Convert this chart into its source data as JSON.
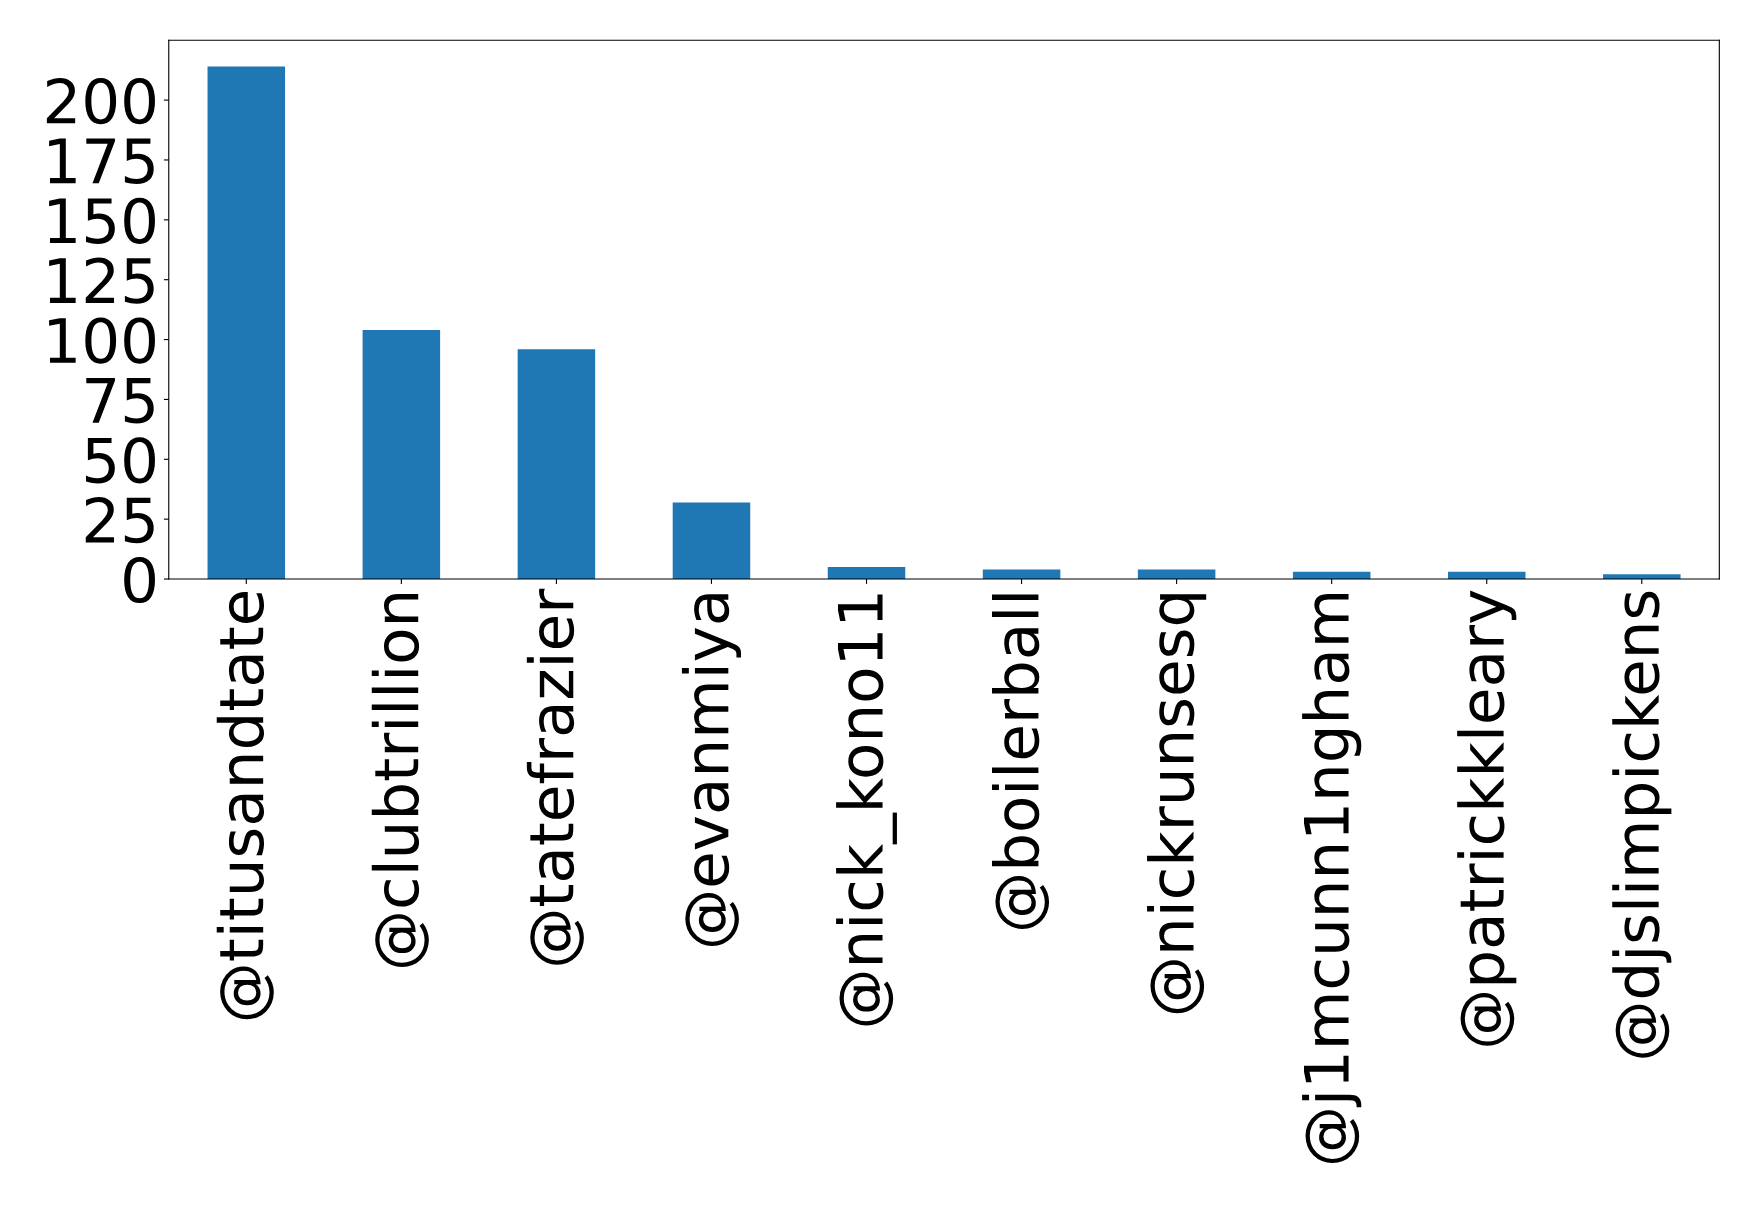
{
  "chart_data": {
    "type": "bar",
    "categories": [
      "@titusandtate",
      "@clubtrillion",
      "@tatefrazier",
      "@evanmiya",
      "@nick_kono11",
      "@boilerball",
      "@nickrunsesq",
      "@j1mcunn1ngham",
      "@patrickkleary",
      "@djslimpickens"
    ],
    "values": [
      214,
      104,
      96,
      32,
      5,
      4,
      4,
      3,
      3,
      2
    ],
    "color": "#1f77b4",
    "ylim": [
      0,
      225
    ],
    "yticks": [
      0,
      25,
      50,
      75,
      100,
      125,
      150,
      175,
      200
    ],
    "grid": false
  }
}
